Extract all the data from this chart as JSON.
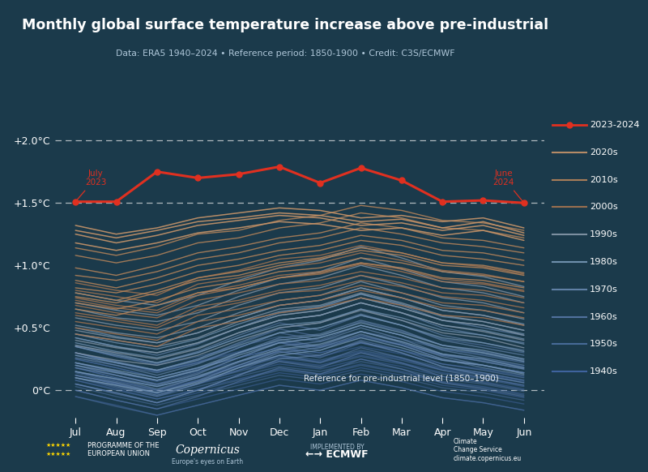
{
  "title": "Monthly global surface temperature increase above pre-industrial",
  "subtitle": "Data: ERA5 1940–2024 • Reference period: 1850-1900 • Credit: C3S/ECMWF",
  "bg_color": "#1b3a4b",
  "months": [
    "Jul",
    "Aug",
    "Sep",
    "Oct",
    "Nov",
    "Dec",
    "Jan",
    "Feb",
    "Mar",
    "Apr",
    "May",
    "Jun"
  ],
  "line_2023_2024": [
    1.51,
    1.51,
    1.75,
    1.7,
    1.73,
    1.79,
    1.66,
    1.78,
    1.68,
    1.51,
    1.52,
    1.5
  ],
  "yticks": [
    0.0,
    0.5,
    1.0,
    1.5,
    2.0
  ],
  "ytick_labels": [
    "0°C",
    "+0.5°C",
    "+1.0°C",
    "+1.5°C",
    "+2.0°C"
  ],
  "decades": {
    "2020s": {
      "color": "#c8956a",
      "alpha": 0.9,
      "lw": 1.1
    },
    "2010s": {
      "color": "#b8855a",
      "alpha": 0.85,
      "lw": 1.0
    },
    "2000s": {
      "color": "#a87550",
      "alpha": 0.8,
      "lw": 1.0
    },
    "1990s": {
      "color": "#8899aa",
      "alpha": 0.75,
      "lw": 1.0
    },
    "1980s": {
      "color": "#7899b8",
      "alpha": 0.7,
      "lw": 1.0
    },
    "1970s": {
      "color": "#6888b0",
      "alpha": 0.65,
      "lw": 1.0
    },
    "1960s": {
      "color": "#5878a8",
      "alpha": 0.6,
      "lw": 1.0
    },
    "1950s": {
      "color": "#4d70a0",
      "alpha": 0.55,
      "lw": 1.0
    },
    "1940s": {
      "color": "#4468a8",
      "alpha": 0.5,
      "lw": 1.0
    }
  },
  "decade_data": {
    "2020s": [
      [
        1.32,
        1.25,
        1.3,
        1.38,
        1.42,
        1.46,
        1.44,
        1.38,
        1.4,
        1.35,
        1.38,
        1.3
      ],
      [
        1.25,
        1.18,
        1.24,
        1.32,
        1.36,
        1.4,
        1.38,
        1.32,
        1.34,
        1.28,
        1.32,
        1.24
      ],
      [
        1.18,
        1.12,
        1.18,
        1.26,
        1.3,
        1.35,
        1.33,
        1.28,
        1.3,
        1.24,
        1.28,
        1.2
      ],
      [
        1.28,
        1.22,
        1.28,
        1.35,
        1.38,
        1.42,
        1.4,
        1.35,
        1.37,
        1.3,
        1.35,
        1.26
      ]
    ],
    "2010s": [
      [
        0.92,
        0.88,
        0.95,
        1.05,
        1.1,
        1.18,
        1.22,
        1.3,
        1.25,
        1.18,
        1.15,
        1.1
      ],
      [
        1.08,
        1.02,
        1.08,
        1.18,
        1.22,
        1.3,
        1.34,
        1.42,
        1.38,
        1.3,
        1.28,
        1.22
      ],
      [
        1.14,
        1.08,
        1.15,
        1.25,
        1.28,
        1.36,
        1.4,
        1.48,
        1.44,
        1.36,
        1.34,
        1.28
      ],
      [
        0.82,
        0.78,
        0.85,
        0.95,
        1.0,
        1.08,
        1.12,
        1.2,
        1.16,
        1.08,
        1.05,
        1.0
      ],
      [
        0.75,
        0.7,
        0.78,
        0.88,
        0.92,
        1.0,
        1.05,
        1.12,
        1.08,
        1.0,
        0.98,
        0.92
      ],
      [
        0.88,
        0.82,
        0.9,
        1.0,
        1.05,
        1.12,
        1.16,
        1.24,
        1.2,
        1.12,
        1.1,
        1.04
      ],
      [
        0.7,
        0.65,
        0.72,
        0.82,
        0.87,
        0.95,
        0.98,
        1.06,
        1.02,
        0.95,
        0.92,
        0.87
      ],
      [
        0.98,
        0.92,
        1.0,
        1.1,
        1.15,
        1.22,
        1.26,
        1.34,
        1.3,
        1.22,
        1.2,
        1.14
      ],
      [
        0.78,
        0.72,
        0.8,
        0.9,
        0.95,
        1.02,
        1.06,
        1.14,
        1.1,
        1.02,
        1.0,
        0.94
      ],
      [
        0.65,
        0.6,
        0.68,
        0.78,
        0.82,
        0.9,
        0.94,
        1.02,
        0.98,
        0.9,
        0.88,
        0.82
      ]
    ],
    "2000s": [
      [
        0.68,
        0.62,
        0.58,
        0.72,
        0.78,
        0.85,
        0.88,
        0.95,
        0.9,
        0.82,
        0.8,
        0.74
      ],
      [
        0.6,
        0.55,
        0.5,
        0.64,
        0.7,
        0.78,
        0.8,
        0.88,
        0.83,
        0.75,
        0.72,
        0.66
      ],
      [
        0.74,
        0.68,
        0.64,
        0.78,
        0.84,
        0.92,
        0.95,
        1.02,
        0.97,
        0.89,
        0.86,
        0.8
      ],
      [
        0.8,
        0.75,
        0.7,
        0.85,
        0.9,
        0.98,
        1.02,
        1.1,
        1.04,
        0.96,
        0.93,
        0.87
      ],
      [
        0.55,
        0.5,
        0.45,
        0.6,
        0.65,
        0.72,
        0.76,
        0.84,
        0.78,
        0.7,
        0.68,
        0.62
      ],
      [
        0.86,
        0.8,
        0.76,
        0.9,
        0.96,
        1.05,
        1.08,
        1.16,
        1.1,
        1.02,
        0.99,
        0.93
      ],
      [
        0.62,
        0.57,
        0.52,
        0.67,
        0.72,
        0.8,
        0.84,
        0.92,
        0.86,
        0.78,
        0.76,
        0.7
      ],
      [
        0.5,
        0.45,
        0.4,
        0.55,
        0.6,
        0.68,
        0.72,
        0.8,
        0.74,
        0.66,
        0.64,
        0.58
      ],
      [
        0.72,
        0.66,
        0.62,
        0.76,
        0.82,
        0.9,
        0.93,
        1.01,
        0.95,
        0.87,
        0.85,
        0.79
      ],
      [
        0.45,
        0.4,
        0.35,
        0.5,
        0.55,
        0.62,
        0.66,
        0.74,
        0.68,
        0.6,
        0.58,
        0.52
      ]
    ],
    "1990s": [
      [
        0.45,
        0.4,
        0.35,
        0.42,
        0.55,
        0.65,
        0.68,
        0.78,
        0.7,
        0.6,
        0.55,
        0.48
      ],
      [
        0.58,
        0.52,
        0.48,
        0.55,
        0.68,
        0.78,
        0.82,
        0.92,
        0.84,
        0.74,
        0.7,
        0.62
      ],
      [
        0.7,
        0.64,
        0.6,
        0.68,
        0.8,
        0.9,
        0.95,
        1.06,
        0.97,
        0.87,
        0.83,
        0.75
      ],
      [
        0.78,
        0.72,
        0.68,
        0.76,
        0.88,
        0.98,
        1.04,
        1.15,
        1.06,
        0.95,
        0.91,
        0.83
      ],
      [
        0.36,
        0.3,
        0.25,
        0.33,
        0.46,
        0.56,
        0.6,
        0.7,
        0.62,
        0.52,
        0.47,
        0.4
      ],
      [
        0.52,
        0.46,
        0.42,
        0.5,
        0.62,
        0.72,
        0.76,
        0.87,
        0.78,
        0.68,
        0.64,
        0.57
      ],
      [
        0.65,
        0.58,
        0.55,
        0.62,
        0.75,
        0.85,
        0.9,
        1.0,
        0.92,
        0.82,
        0.78,
        0.7
      ],
      [
        0.4,
        0.34,
        0.3,
        0.38,
        0.5,
        0.6,
        0.64,
        0.74,
        0.66,
        0.56,
        0.52,
        0.44
      ],
      [
        0.3,
        0.24,
        0.2,
        0.28,
        0.4,
        0.5,
        0.54,
        0.64,
        0.56,
        0.46,
        0.42,
        0.34
      ],
      [
        0.48,
        0.42,
        0.38,
        0.46,
        0.58,
        0.68,
        0.72,
        0.82,
        0.74,
        0.64,
        0.6,
        0.52
      ]
    ],
    "1980s": [
      [
        0.35,
        0.28,
        0.22,
        0.3,
        0.42,
        0.52,
        0.55,
        0.65,
        0.58,
        0.48,
        0.44,
        0.37
      ],
      [
        0.2,
        0.14,
        0.08,
        0.16,
        0.28,
        0.38,
        0.42,
        0.52,
        0.44,
        0.34,
        0.3,
        0.23
      ],
      [
        0.42,
        0.35,
        0.3,
        0.38,
        0.5,
        0.6,
        0.64,
        0.74,
        0.66,
        0.56,
        0.52,
        0.45
      ],
      [
        0.28,
        0.22,
        0.16,
        0.24,
        0.36,
        0.46,
        0.5,
        0.6,
        0.52,
        0.42,
        0.38,
        0.31
      ],
      [
        0.15,
        0.09,
        0.03,
        0.11,
        0.23,
        0.33,
        0.37,
        0.47,
        0.39,
        0.29,
        0.25,
        0.18
      ],
      [
        0.5,
        0.43,
        0.38,
        0.46,
        0.58,
        0.68,
        0.72,
        0.82,
        0.74,
        0.64,
        0.6,
        0.53
      ],
      [
        0.22,
        0.16,
        0.1,
        0.18,
        0.3,
        0.4,
        0.44,
        0.54,
        0.46,
        0.36,
        0.32,
        0.25
      ],
      [
        0.38,
        0.31,
        0.26,
        0.34,
        0.46,
        0.56,
        0.6,
        0.7,
        0.62,
        0.52,
        0.48,
        0.41
      ],
      [
        0.1,
        0.04,
        -0.02,
        0.06,
        0.18,
        0.28,
        0.32,
        0.42,
        0.34,
        0.24,
        0.2,
        0.13
      ],
      [
        0.45,
        0.38,
        0.33,
        0.41,
        0.53,
        0.63,
        0.67,
        0.77,
        0.69,
        0.59,
        0.55,
        0.48
      ]
    ],
    "1970s": [
      [
        0.22,
        0.15,
        0.08,
        0.16,
        0.3,
        0.42,
        0.45,
        0.56,
        0.48,
        0.36,
        0.3,
        0.24
      ],
      [
        0.1,
        0.04,
        -0.04,
        0.05,
        0.18,
        0.3,
        0.34,
        0.45,
        0.36,
        0.25,
        0.18,
        0.12
      ],
      [
        0.3,
        0.23,
        0.16,
        0.25,
        0.38,
        0.5,
        0.54,
        0.65,
        0.56,
        0.44,
        0.38,
        0.32
      ],
      [
        0.05,
        -0.02,
        -0.1,
        0.0,
        0.12,
        0.25,
        0.28,
        0.39,
        0.3,
        0.19,
        0.12,
        0.06
      ],
      [
        0.18,
        0.12,
        0.04,
        0.13,
        0.26,
        0.38,
        0.42,
        0.52,
        0.44,
        0.32,
        0.26,
        0.2
      ],
      [
        0.36,
        0.29,
        0.22,
        0.31,
        0.44,
        0.56,
        0.6,
        0.7,
        0.62,
        0.5,
        0.44,
        0.38
      ],
      [
        0.12,
        0.06,
        -0.02,
        0.07,
        0.2,
        0.32,
        0.36,
        0.47,
        0.38,
        0.27,
        0.2,
        0.14
      ],
      [
        0.42,
        0.35,
        0.28,
        0.37,
        0.5,
        0.62,
        0.66,
        0.77,
        0.68,
        0.56,
        0.5,
        0.44
      ],
      [
        0.26,
        0.2,
        0.12,
        0.21,
        0.34,
        0.46,
        0.5,
        0.61,
        0.52,
        0.4,
        0.34,
        0.28
      ],
      [
        0.15,
        0.09,
        0.01,
        0.1,
        0.23,
        0.35,
        0.39,
        0.5,
        0.41,
        0.29,
        0.23,
        0.17
      ]
    ],
    "1960s": [
      [
        0.2,
        0.12,
        0.05,
        0.14,
        0.26,
        0.38,
        0.32,
        0.44,
        0.36,
        0.25,
        0.2,
        0.14
      ],
      [
        0.1,
        0.03,
        -0.05,
        0.05,
        0.16,
        0.28,
        0.22,
        0.34,
        0.26,
        0.16,
        0.1,
        0.04
      ],
      [
        0.28,
        0.2,
        0.14,
        0.22,
        0.34,
        0.46,
        0.4,
        0.52,
        0.44,
        0.33,
        0.28,
        0.22
      ],
      [
        0.15,
        0.07,
        0.0,
        0.1,
        0.22,
        0.33,
        0.28,
        0.4,
        0.32,
        0.21,
        0.16,
        0.1
      ],
      [
        0.05,
        -0.03,
        -0.1,
        0.0,
        0.12,
        0.23,
        0.18,
        0.3,
        0.22,
        0.11,
        0.06,
        0.0
      ],
      [
        0.35,
        0.27,
        0.21,
        0.3,
        0.42,
        0.54,
        0.48,
        0.6,
        0.52,
        0.41,
        0.36,
        0.3
      ],
      [
        0.0,
        -0.08,
        -0.15,
        -0.05,
        0.07,
        0.18,
        0.13,
        0.25,
        0.17,
        0.06,
        0.01,
        -0.05
      ],
      [
        0.22,
        0.15,
        0.08,
        0.17,
        0.29,
        0.41,
        0.35,
        0.47,
        0.39,
        0.28,
        0.23,
        0.17
      ],
      [
        0.12,
        0.05,
        -0.02,
        0.08,
        0.2,
        0.31,
        0.26,
        0.38,
        0.3,
        0.19,
        0.14,
        0.08
      ],
      [
        0.3,
        0.22,
        0.16,
        0.25,
        0.37,
        0.49,
        0.43,
        0.55,
        0.47,
        0.36,
        0.31,
        0.25
      ]
    ],
    "1950s": [
      [
        0.18,
        0.1,
        0.03,
        0.1,
        0.18,
        0.26,
        0.22,
        0.3,
        0.24,
        0.16,
        0.12,
        0.06
      ],
      [
        0.08,
        0.0,
        -0.07,
        0.0,
        0.08,
        0.16,
        0.12,
        0.2,
        0.14,
        0.06,
        0.02,
        -0.04
      ],
      [
        0.25,
        0.18,
        0.1,
        0.18,
        0.26,
        0.34,
        0.3,
        0.38,
        0.32,
        0.24,
        0.2,
        0.14
      ],
      [
        0.03,
        -0.05,
        -0.12,
        -0.04,
        0.04,
        0.12,
        0.08,
        0.16,
        0.1,
        0.02,
        -0.02,
        -0.08
      ],
      [
        0.14,
        0.06,
        -0.01,
        0.07,
        0.15,
        0.23,
        0.19,
        0.27,
        0.21,
        0.13,
        0.09,
        0.03
      ],
      [
        0.3,
        0.22,
        0.15,
        0.22,
        0.3,
        0.38,
        0.34,
        0.42,
        0.36,
        0.28,
        0.24,
        0.18
      ],
      [
        0.1,
        0.02,
        -0.05,
        0.03,
        0.11,
        0.19,
        0.15,
        0.23,
        0.17,
        0.09,
        0.05,
        -0.01
      ],
      [
        0.2,
        0.12,
        0.05,
        0.12,
        0.2,
        0.28,
        0.24,
        0.32,
        0.26,
        0.18,
        0.14,
        0.08
      ],
      [
        -0.05,
        -0.13,
        -0.2,
        -0.12,
        -0.04,
        0.04,
        0.0,
        0.08,
        0.02,
        -0.06,
        -0.1,
        -0.16
      ],
      [
        0.35,
        0.27,
        0.2,
        0.27,
        0.35,
        0.43,
        0.39,
        0.47,
        0.41,
        0.33,
        0.29,
        0.23
      ]
    ],
    "1940s": [
      [
        0.15,
        0.08,
        0.0,
        0.08,
        0.16,
        0.24,
        0.2,
        0.28,
        0.22,
        0.14,
        0.1,
        0.04
      ],
      [
        0.05,
        -0.02,
        -0.1,
        -0.02,
        0.06,
        0.14,
        0.1,
        0.18,
        0.12,
        0.04,
        0.0,
        -0.06
      ],
      [
        0.22,
        0.14,
        0.07,
        0.15,
        0.23,
        0.31,
        0.27,
        0.35,
        0.29,
        0.21,
        0.17,
        0.11
      ],
      [
        0.0,
        -0.08,
        -0.15,
        -0.07,
        0.01,
        0.09,
        0.05,
        0.13,
        0.07,
        -0.01,
        -0.05,
        -0.11
      ],
      [
        0.18,
        0.1,
        0.03,
        0.11,
        0.19,
        0.27,
        0.23,
        0.31,
        0.25,
        0.17,
        0.13,
        0.07
      ],
      [
        -0.05,
        -0.12,
        -0.2,
        -0.12,
        -0.04,
        0.04,
        0.0,
        0.08,
        0.02,
        -0.06,
        -0.1,
        -0.16
      ],
      [
        0.12,
        0.05,
        -0.03,
        0.05,
        0.13,
        0.21,
        0.17,
        0.25,
        0.19,
        0.11,
        0.07,
        0.01
      ],
      [
        0.25,
        0.18,
        0.1,
        0.18,
        0.26,
        0.34,
        0.3,
        0.38,
        0.32,
        0.24,
        0.2,
        0.14
      ],
      [
        0.08,
        0.01,
        -0.07,
        0.01,
        0.09,
        0.17,
        0.13,
        0.21,
        0.15,
        0.07,
        0.03,
        -0.03
      ],
      [
        0.3,
        0.22,
        0.15,
        0.23,
        0.31,
        0.39,
        0.35,
        0.43,
        0.37,
        0.29,
        0.25,
        0.19
      ]
    ]
  },
  "legend_order": [
    "2023-2024",
    "2020s",
    "2010s",
    "2000s",
    "1990s",
    "1980s",
    "1970s",
    "1960s",
    "1950s",
    "1940s"
  ],
  "legend_colors": {
    "2023-2024": "#e03020",
    "2020s": "#c8956a",
    "2010s": "#b8855a",
    "2000s": "#a87550",
    "1990s": "#8899aa",
    "1980s": "#7899b8",
    "1970s": "#6888b0",
    "1960s": "#5878a8",
    "1950s": "#4d70a0",
    "1940s": "#4468a8"
  }
}
